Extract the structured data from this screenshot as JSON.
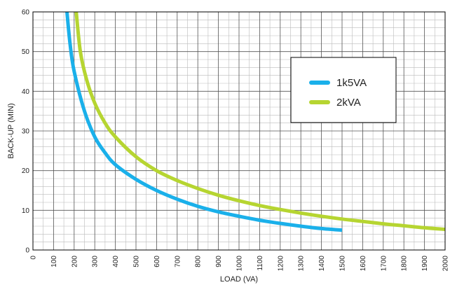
{
  "chart_data": {
    "type": "line",
    "title": "",
    "xlabel": "LOAD (VA)",
    "ylabel": "BACK-UP (MIN)",
    "xlim": [
      0,
      2000
    ],
    "ylim": [
      0,
      60
    ],
    "x_ticks": [
      0,
      100,
      200,
      300,
      400,
      500,
      600,
      700,
      800,
      900,
      1000,
      1100,
      1200,
      1300,
      1400,
      1500,
      1600,
      1700,
      1800,
      1900,
      2000
    ],
    "y_ticks": [
      0,
      10,
      20,
      30,
      40,
      50,
      60
    ],
    "grid": true,
    "legend_position": "top-right",
    "series": [
      {
        "name": "1k5VA",
        "color": "#1ab0ea",
        "points": [
          [
            165,
            60
          ],
          [
            180,
            52
          ],
          [
            200,
            45
          ],
          [
            250,
            35
          ],
          [
            300,
            28.5
          ],
          [
            350,
            24.5
          ],
          [
            400,
            21.5
          ],
          [
            500,
            17.8
          ],
          [
            600,
            15
          ],
          [
            700,
            12.8
          ],
          [
            800,
            11
          ],
          [
            900,
            9.6
          ],
          [
            1000,
            8.5
          ],
          [
            1100,
            7.5
          ],
          [
            1200,
            6.7
          ],
          [
            1300,
            6
          ],
          [
            1400,
            5.4
          ],
          [
            1500,
            5
          ]
        ]
      },
      {
        "name": "2kVA",
        "color": "#b6d531",
        "points": [
          [
            210,
            60
          ],
          [
            230,
            50
          ],
          [
            260,
            43
          ],
          [
            300,
            37
          ],
          [
            350,
            32
          ],
          [
            400,
            28.5
          ],
          [
            500,
            23.5
          ],
          [
            600,
            20
          ],
          [
            700,
            17.5
          ],
          [
            800,
            15.5
          ],
          [
            900,
            13.8
          ],
          [
            1000,
            12.4
          ],
          [
            1100,
            11.2
          ],
          [
            1200,
            10.2
          ],
          [
            1300,
            9.3
          ],
          [
            1400,
            8.5
          ],
          [
            1500,
            7.8
          ],
          [
            1600,
            7.2
          ],
          [
            1700,
            6.6
          ],
          [
            1800,
            6.1
          ],
          [
            1900,
            5.6
          ],
          [
            2000,
            5.2
          ]
        ]
      }
    ]
  }
}
